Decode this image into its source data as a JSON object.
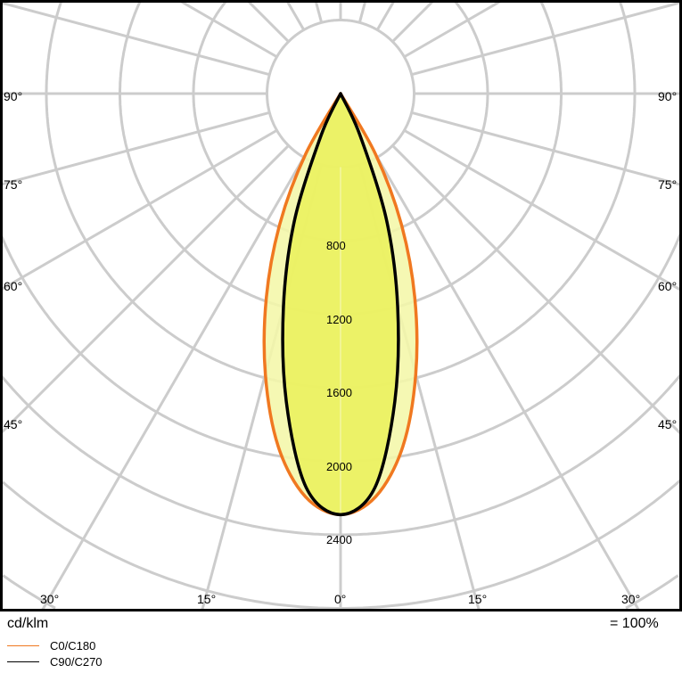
{
  "chart_data": {
    "type": "polar",
    "unit_label": "cd/klm",
    "scale_note": "= 100%",
    "radial_ticks": [
      800,
      1200,
      1600,
      2000,
      2400
    ],
    "radial_rings": [
      400,
      800,
      1200,
      1600,
      2000,
      2400,
      2800,
      3200
    ],
    "side_angle_labels": [
      "90°",
      "75°",
      "60°",
      "45°"
    ],
    "bottom_angle_labels": [
      "30°",
      "15°",
      "0°",
      "15°",
      "30°"
    ],
    "grid": true,
    "angle_step_deg": 15,
    "series": [
      {
        "name": "C0/C180",
        "color": "#f07820",
        "fill": "#f4f7a8",
        "angles": [
          0,
          5,
          10,
          15,
          20,
          25,
          30,
          35
        ],
        "values": [
          2290,
          2200,
          1950,
          1580,
          1180,
          780,
          380,
          0
        ]
      },
      {
        "name": "C90/C270",
        "color": "#000000",
        "fill": "#ebf05c",
        "angles": [
          0,
          5,
          10,
          15,
          20,
          25,
          28
        ],
        "values": [
          2290,
          2150,
          1700,
          1200,
          730,
          250,
          0
        ]
      }
    ]
  }
}
